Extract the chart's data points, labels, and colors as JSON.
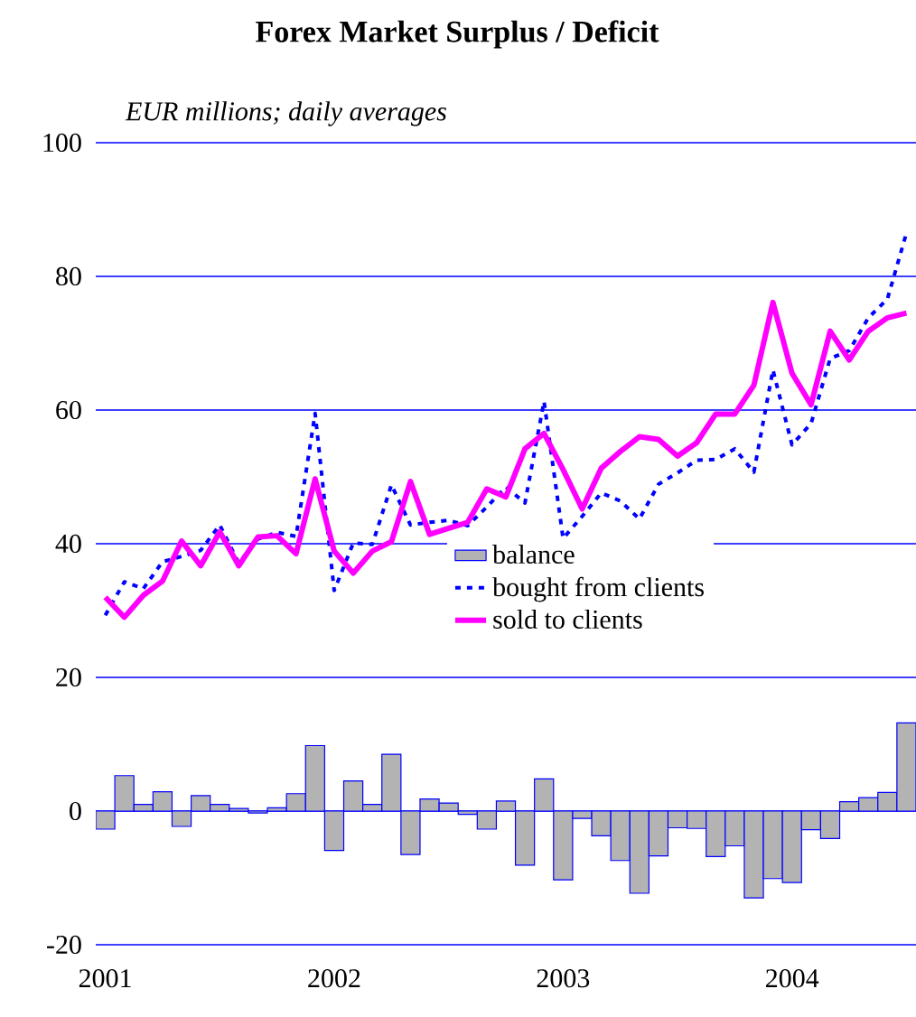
{
  "chart_data": {
    "type": "line",
    "title": "Forex Market Surplus / Deficit",
    "subtitle": "EUR millions; daily averages",
    "categories": [
      "2001",
      null,
      null,
      null,
      null,
      null,
      null,
      null,
      null,
      null,
      null,
      null,
      "2002",
      null,
      null,
      null,
      null,
      null,
      null,
      null,
      null,
      null,
      null,
      null,
      "2003",
      null,
      null,
      null,
      null,
      null,
      null,
      null,
      null,
      null,
      null,
      null,
      "2004",
      null,
      null,
      null,
      null,
      null,
      null
    ],
    "series": [
      {
        "name": "balance",
        "type": "bar",
        "color": "#b3b3b3",
        "values": [
          -2.7,
          5.3,
          1.0,
          2.9,
          -2.3,
          2.3,
          1.0,
          0.4,
          -0.3,
          0.5,
          2.6,
          9.8,
          -5.9,
          4.5,
          1.0,
          8.5,
          -6.5,
          1.8,
          1.2,
          -0.5,
          -2.7,
          1.5,
          -8.1,
          4.8,
          -10.3,
          -1.1,
          -3.7,
          -7.4,
          -12.3,
          -6.7,
          -2.5,
          -2.6,
          -6.8,
          -5.2,
          -13.0,
          -10.1,
          -10.7,
          -2.8,
          -4.1,
          1.4,
          2.0,
          2.8,
          13.2
        ]
      },
      {
        "name": "bought from clients",
        "line_style": "dotted",
        "color": "#0000ff",
        "values": [
          29.3,
          34.3,
          33.3,
          37.3,
          38.1,
          39.0,
          42.8,
          37.1,
          40.7,
          41.7,
          41.1,
          59.5,
          33.0,
          40.1,
          39.9,
          48.8,
          42.8,
          43.2,
          43.5,
          42.7,
          45.5,
          48.5,
          46.1,
          61.3,
          40.8,
          44.1,
          47.6,
          46.4,
          43.7,
          48.9,
          50.6,
          52.5,
          52.6,
          54.2,
          50.7,
          66.0,
          54.8,
          58.0,
          67.7,
          68.9,
          73.8,
          76.6,
          86.5
        ]
      },
      {
        "name": "sold to clients",
        "line_style": "solid",
        "color": "#ff00ff",
        "values": [
          32.0,
          29.0,
          32.3,
          34.4,
          40.4,
          36.7,
          41.8,
          36.7,
          41.0,
          41.2,
          38.5,
          49.7,
          38.9,
          35.6,
          38.9,
          40.3,
          49.3,
          41.4,
          42.3,
          43.2,
          48.2,
          47.0,
          54.2,
          56.5,
          51.1,
          45.2,
          51.3,
          53.8,
          56.0,
          55.6,
          53.1,
          55.1,
          59.4,
          59.4,
          63.7,
          76.1,
          65.5,
          60.8,
          71.8,
          67.5,
          71.8,
          73.8,
          74.5
        ]
      }
    ],
    "ylim": [
      -20,
      100
    ],
    "yticks": [
      -20,
      0,
      20,
      40,
      60,
      80,
      100
    ],
    "grid": "y",
    "legend": "right",
    "marker": "none"
  }
}
